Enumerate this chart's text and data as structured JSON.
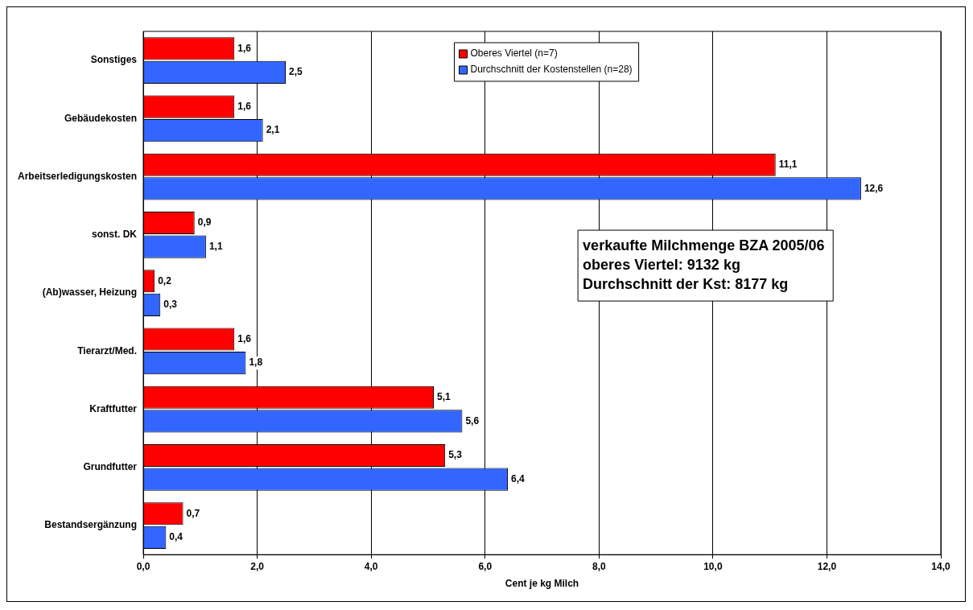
{
  "chart_data": {
    "type": "bar",
    "orientation": "horizontal",
    "xlabel": "Cent je kg Milch",
    "categories": [
      "Sonstiges",
      "Gebäudekosten",
      "Arbeitserledigungskosten",
      "sonst. DK",
      "(Ab)wasser, Heizung",
      "Tierarzt/Med.",
      "Kraftfutter",
      "Grundfutter",
      "Bestandsergänzung"
    ],
    "series": [
      {
        "name": "Oberes Viertel (n=7)",
        "color": "#ff0000",
        "values": [
          1.6,
          1.6,
          11.1,
          0.9,
          0.2,
          1.6,
          5.1,
          5.3,
          0.7
        ],
        "value_labels": [
          "1,6",
          "1,6",
          "11,1",
          "0,9",
          "0,2",
          "1,6",
          "5,1",
          "5,3",
          "0,7"
        ]
      },
      {
        "name": "Durchschnitt der Kostenstellen (n=28)",
        "color": "#3366ff",
        "values": [
          2.5,
          2.1,
          12.6,
          1.1,
          0.3,
          1.8,
          5.6,
          6.4,
          0.4
        ],
        "value_labels": [
          "2,5",
          "2,1",
          "12,6",
          "1,1",
          "0,3",
          "1,8",
          "5,6",
          "6,4",
          "0,4"
        ]
      }
    ],
    "xlim": [
      0,
      14
    ],
    "xticks": [
      {
        "value": 0,
        "label": "0,0"
      },
      {
        "value": 2,
        "label": "2,0"
      },
      {
        "value": 4,
        "label": "4,0"
      },
      {
        "value": 6,
        "label": "6,0"
      },
      {
        "value": 8,
        "label": "8,0"
      },
      {
        "value": 10,
        "label": "10,0"
      },
      {
        "value": 12,
        "label": "12,0"
      },
      {
        "value": 14,
        "label": "14,0"
      }
    ],
    "grid": "x",
    "legend": "top",
    "annotations": [
      "verkaufte Milchmenge BZA 2005/06",
      "oberes Viertel: 9132 kg",
      "Durchschnitt der Kst: 8177 kg"
    ]
  }
}
